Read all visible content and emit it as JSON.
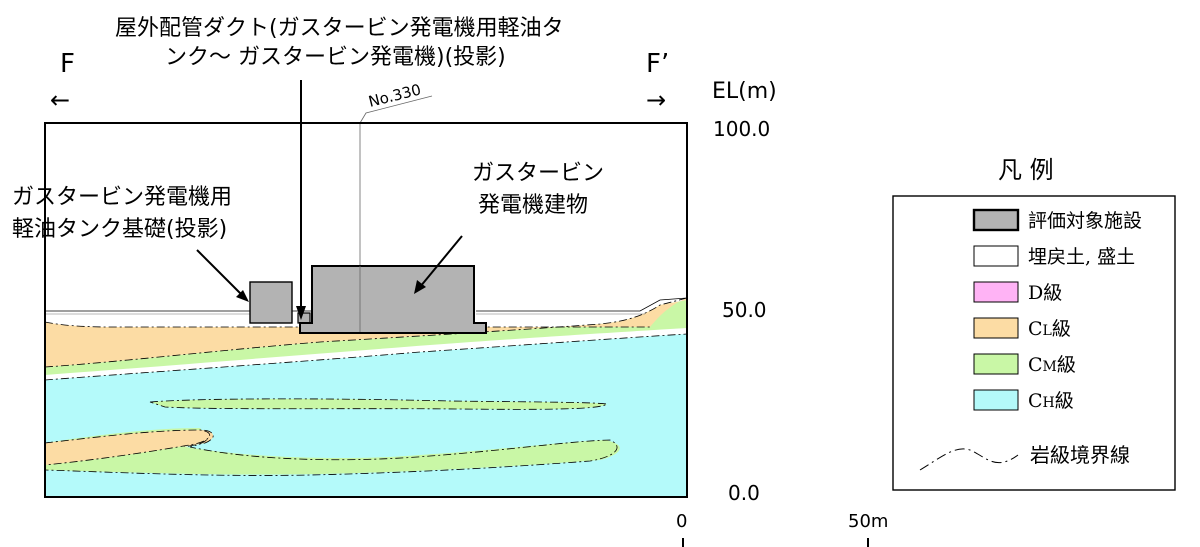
{
  "section": {
    "left_label": "F",
    "right_label": "F’",
    "left_arrow": "←",
    "right_arrow": "→",
    "survey_line_label": "No.330"
  },
  "elevation_axis": {
    "label": "EL(m)",
    "ticks": [
      "100.0",
      "50.0",
      "0.0"
    ]
  },
  "scale_bar": {
    "start": "0",
    "end": "50m"
  },
  "annotations": {
    "duct_line1": "屋外配管ダクト(ガスタービン発電機用軽油タ",
    "duct_line2": "ンク～ ガスタービン発電機)(投影)",
    "tank_line1": "ガスタービン発電機用",
    "tank_line2": "軽油タンク基礎(投影)",
    "building_line1": "ガスタービン",
    "building_line2": "発電機建物"
  },
  "legend": {
    "title": "凡 例",
    "items": [
      {
        "label": "評価対象施設",
        "color": "#b3b3b3",
        "bold_border": true
      },
      {
        "label": "埋戻土, 盛土",
        "color": "#ffffff",
        "bold_border": false
      },
      {
        "label": "D級",
        "color": "#ffb3f5",
        "bold_border": false
      },
      {
        "label": "C",
        "sub": "L",
        "suffix": "級",
        "color": "#fcdca4",
        "bold_border": false
      },
      {
        "label": "C",
        "sub": "M",
        "suffix": "級",
        "color": "#c9f7a6",
        "bold_border": false
      },
      {
        "label": "C",
        "sub": "H",
        "suffix": "級",
        "color": "#b4fafa",
        "bold_border": false
      }
    ],
    "boundary_label": "岩級境界線"
  },
  "colors": {
    "facility": "#b3b3b3",
    "fill": "#ffffff",
    "cl": "#fcdca4",
    "cm": "#c9f7a6",
    "ch": "#b4fafa"
  }
}
